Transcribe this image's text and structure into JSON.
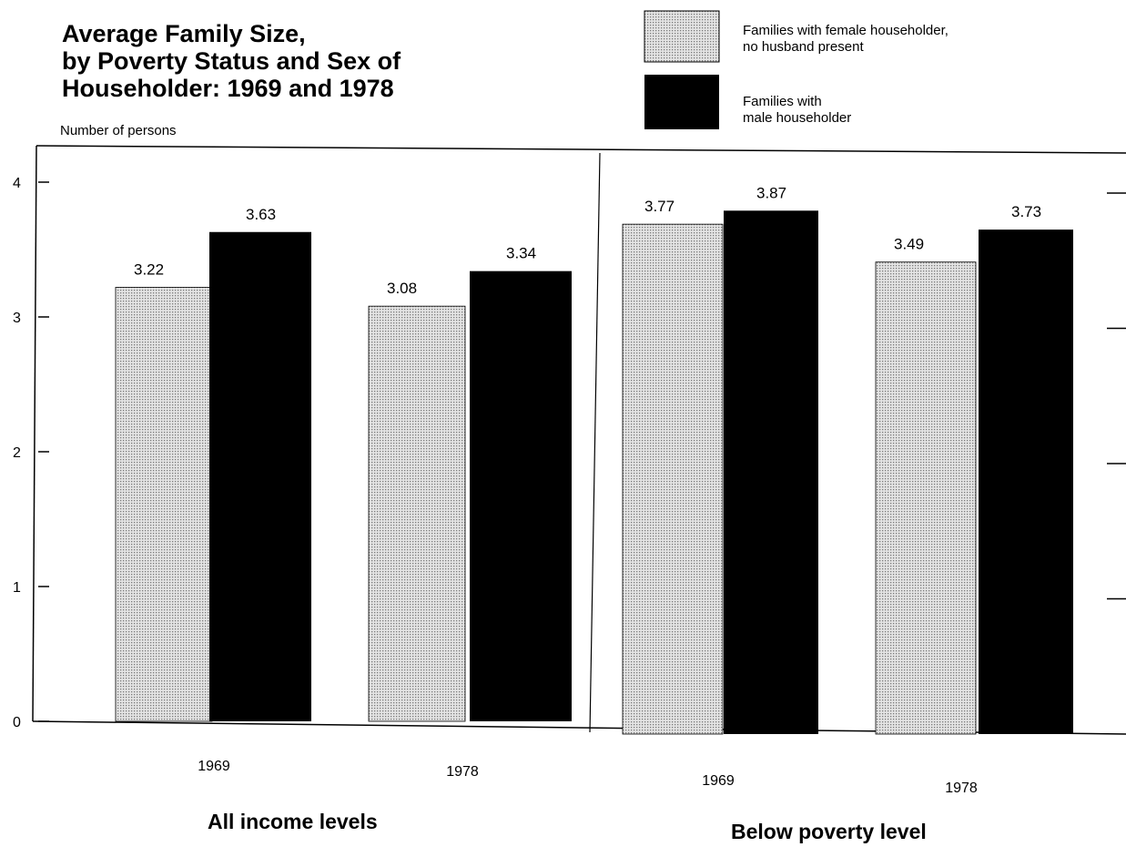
{
  "chart_data": {
    "type": "bar",
    "title_lines": [
      "Average Family Size,",
      "by Poverty Status and Sex of",
      "Householder: 1969 and 1978"
    ],
    "ylabel": "Number of persons",
    "ylim": [
      0,
      4
    ],
    "yticks": [
      "0",
      "1",
      "2",
      "3",
      "4"
    ],
    "grid": false,
    "legend_position": "top-right",
    "groups": [
      {
        "label": "All income levels",
        "categories": [
          "1969",
          "1978"
        ],
        "series": [
          {
            "name": "Families with female householder, no husband present",
            "values": [
              3.22,
              3.08
            ],
            "labels": [
              "3.22",
              "3.08"
            ]
          },
          {
            "name": "Families with male householder",
            "values": [
              3.63,
              3.34
            ],
            "labels": [
              "3.63",
              "3.34"
            ]
          }
        ]
      },
      {
        "label": "Below poverty level",
        "categories": [
          "1969",
          "1978"
        ],
        "series": [
          {
            "name": "Families with female householder, no husband present",
            "values": [
              3.77,
              3.49
            ],
            "labels": [
              "3.77",
              "3.49"
            ]
          },
          {
            "name": "Families with male householder",
            "values": [
              3.87,
              3.73
            ],
            "labels": [
              "3.87",
              "3.73"
            ]
          }
        ]
      }
    ],
    "legend": [
      {
        "lines": [
          "Families with female householder,",
          "no husband present"
        ],
        "fill": "dotted-gray"
      },
      {
        "lines": [
          "Families with",
          "male householder"
        ],
        "fill": "#000000"
      }
    ],
    "colors": {
      "female": "#c9c9c9",
      "male": "#000000",
      "axis": "#000000"
    }
  }
}
